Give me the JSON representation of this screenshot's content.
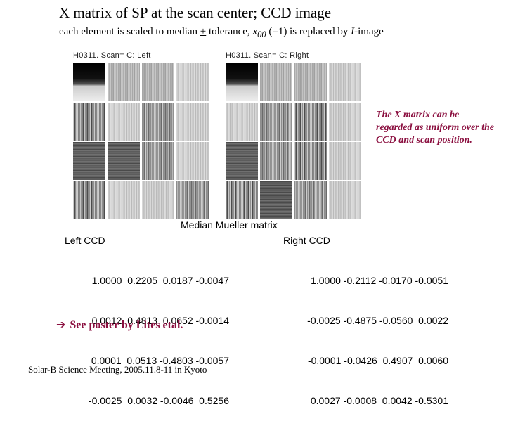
{
  "title": "X matrix of SP at the scan center; CCD image",
  "subtitle": {
    "part1": "each element is scaled to median ",
    "plus": "+",
    "part2": " tolerance,   ",
    "x00": "x",
    "x00_sub": "00",
    "part3": " (=1) is replaced by ",
    "i_image": "I",
    "part4": "-image"
  },
  "panels": {
    "left_label": "H0311. Scan=    C:  Left",
    "right_label": "H0311. Scan=    C:  Right"
  },
  "note": "The X matrix can be regarded as uniform over the CCD and scan position.",
  "median_title": "Median Mueller matrix",
  "left_ccd": {
    "label": "Left CCD",
    "rows": [
      "1.0000  0.2205  0.0187 -0.0047",
      "0.0012  0.4813  0.0652 -0.0014",
      "0.0001  0.0513 -0.4803 -0.0057",
      "-0.0025  0.0032 -0.0046  0.5256"
    ]
  },
  "right_ccd": {
    "label": "Right CCD",
    "rows": [
      "1.0000 -0.2112 -0.0170 -0.0051",
      "-0.0025 -0.4875 -0.0560  0.0022",
      "-0.0001 -0.0426  0.4907  0.0060",
      "0.0027 -0.0008  0.0042 -0.5301"
    ]
  },
  "poster": {
    "arrow": "➔",
    "text": "See poster by Lites etal."
  },
  "footer": "Solar-B Science Meeting, 2005.11.8-11 in Kyoto"
}
